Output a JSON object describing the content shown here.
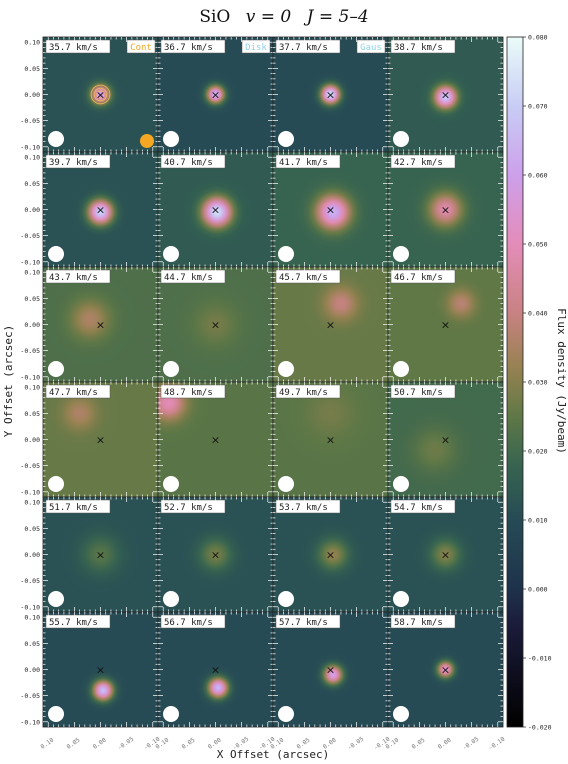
{
  "chart_data": {
    "type": "heatmap",
    "title": "SiO  v = 0  J = 5–4",
    "title_parts": {
      "species": "SiO",
      "v_label": "v = 0",
      "j_label": "J = 5–4"
    },
    "xlabel": "X Offset (arcsec)",
    "ylabel": "Y Offset (arcsec)",
    "colorbar_label": "Flux density (Jy/beam)",
    "colorbar_ticks": [
      "0.080",
      "0.070",
      "0.060",
      "0.050",
      "0.040",
      "0.030",
      "0.020",
      "0.010",
      "0.000",
      "-0.010",
      "-0.020"
    ],
    "colorbar_range": [
      -0.02,
      0.08
    ],
    "x_tick_labels": [
      "0.10",
      "0.05",
      "0.00",
      "-0.05",
      "-0.10"
    ],
    "y_tick_labels": [
      "0.10",
      "0.05",
      "0.00",
      "-0.05",
      "-0.10"
    ],
    "x_range": [
      0.11,
      -0.11
    ],
    "y_range": [
      -0.11,
      0.11
    ],
    "grid": {
      "rows": 6,
      "cols": 4
    },
    "legend": [
      {
        "label": "Cont",
        "color": "#f5a623"
      },
      {
        "label": "Disk",
        "color": "#8fd3e8"
      },
      {
        "label": "Gaus",
        "color": "#8fd3e8"
      }
    ],
    "center_marker": "×",
    "panels": [
      {
        "velocity": "35.7 km/s",
        "peak": 0.06,
        "bg": 0.012,
        "peak_x": 0.0,
        "peak_y": 0.0,
        "size": 0.018,
        "contours": true,
        "cont_beam": true
      },
      {
        "velocity": "36.7 km/s",
        "peak": 0.065,
        "bg": 0.01,
        "peak_x": 0.0,
        "peak_y": 0.0,
        "size": 0.016
      },
      {
        "velocity": "37.7 km/s",
        "peak": 0.075,
        "bg": 0.01,
        "peak_x": 0.0,
        "peak_y": 0.0,
        "size": 0.017
      },
      {
        "velocity": "38.7 km/s",
        "peak": 0.07,
        "bg": 0.015,
        "peak_x": 0.0,
        "peak_y": -0.005,
        "size": 0.02
      },
      {
        "velocity": "39.7 km/s",
        "peak": 0.072,
        "bg": 0.012,
        "peak_x": 0.0,
        "peak_y": -0.005,
        "size": 0.022
      },
      {
        "velocity": "40.7 km/s",
        "peak": 0.075,
        "bg": 0.015,
        "peak_x": -0.003,
        "peak_y": -0.005,
        "size": 0.026
      },
      {
        "velocity": "41.7 km/s",
        "peak": 0.065,
        "bg": 0.018,
        "peak_x": -0.005,
        "peak_y": -0.005,
        "size": 0.03
      },
      {
        "velocity": "42.7 km/s",
        "peak": 0.048,
        "bg": 0.018,
        "peak_x": 0.0,
        "peak_y": 0.0,
        "size": 0.03
      },
      {
        "velocity": "43.7 km/s",
        "peak": 0.036,
        "bg": 0.022,
        "peak_x": 0.02,
        "peak_y": 0.01,
        "size": 0.035
      },
      {
        "velocity": "44.7 km/s",
        "peak": 0.028,
        "bg": 0.022,
        "peak_x": 0.0,
        "peak_y": 0.0,
        "size": 0.04
      },
      {
        "velocity": "45.7 km/s",
        "peak": 0.04,
        "bg": 0.026,
        "peak_x": -0.02,
        "peak_y": 0.04,
        "size": 0.03
      },
      {
        "velocity": "46.7 km/s",
        "peak": 0.038,
        "bg": 0.025,
        "peak_x": -0.03,
        "peak_y": 0.04,
        "size": 0.025
      },
      {
        "velocity": "47.7 km/s",
        "peak": 0.036,
        "bg": 0.026,
        "peak_x": 0.04,
        "peak_y": 0.05,
        "size": 0.03
      },
      {
        "velocity": "48.7 km/s",
        "peak": 0.05,
        "bg": 0.024,
        "peak_x": 0.09,
        "peak_y": 0.07,
        "size": 0.03
      },
      {
        "velocity": "49.7 km/s",
        "peak": 0.028,
        "bg": 0.024,
        "peak_x": 0.0,
        "peak_y": 0.05,
        "size": 0.045
      },
      {
        "velocity": "50.7 km/s",
        "peak": 0.027,
        "bg": 0.02,
        "peak_x": 0.02,
        "peak_y": -0.02,
        "size": 0.04
      },
      {
        "velocity": "51.7 km/s",
        "peak": 0.024,
        "bg": 0.012,
        "peak_x": 0.0,
        "peak_y": 0.0,
        "size": 0.035
      },
      {
        "velocity": "52.7 km/s",
        "peak": 0.028,
        "bg": 0.012,
        "peak_x": 0.0,
        "peak_y": 0.0,
        "size": 0.03
      },
      {
        "velocity": "53.7 km/s",
        "peak": 0.032,
        "bg": 0.012,
        "peak_x": -0.005,
        "peak_y": 0.0,
        "size": 0.028
      },
      {
        "velocity": "54.7 km/s",
        "peak": 0.03,
        "bg": 0.012,
        "peak_x": 0.0,
        "peak_y": 0.0,
        "size": 0.028
      },
      {
        "velocity": "55.7 km/s",
        "peak": 0.068,
        "bg": 0.01,
        "peak_x": -0.005,
        "peak_y": -0.04,
        "size": 0.018
      },
      {
        "velocity": "56.7 km/s",
        "peak": 0.066,
        "bg": 0.01,
        "peak_x": -0.005,
        "peak_y": -0.035,
        "size": 0.018
      },
      {
        "velocity": "57.7 km/s",
        "peak": 0.06,
        "bg": 0.01,
        "peak_x": -0.005,
        "peak_y": -0.01,
        "size": 0.017
      },
      {
        "velocity": "58.7 km/s",
        "peak": 0.055,
        "bg": 0.01,
        "peak_x": 0.0,
        "peak_y": 0.0,
        "size": 0.015
      }
    ]
  }
}
